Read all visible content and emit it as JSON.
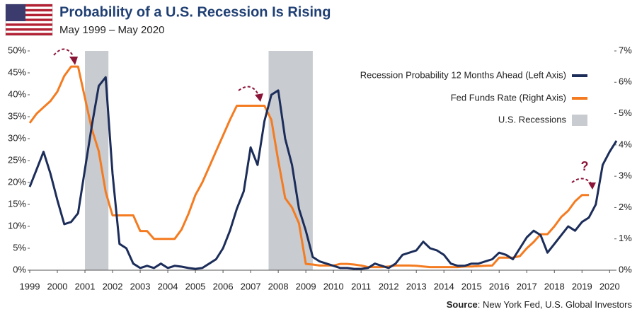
{
  "chart_data": {
    "type": "line",
    "title": "Probability of a U.S. Recession Is Rising",
    "subtitle": "May 1999 – May 2020",
    "source_label": "Source",
    "source_text": ": New York Fed, U.S. Global Investors",
    "annotation": "?",
    "recession_name": "U.S. Recessions",
    "recession_color": "#c8cbd0",
    "recessions": [
      [
        2001.0,
        2001.85
      ],
      [
        2007.65,
        2009.25
      ]
    ],
    "xlim": [
      1999,
      2020.3
    ],
    "xticks": [
      1999,
      2000,
      2001,
      2002,
      2003,
      2004,
      2005,
      2006,
      2007,
      2008,
      2009,
      2010,
      2011,
      2012,
      2013,
      2014,
      2015,
      2016,
      2017,
      2018,
      2019,
      2020
    ],
    "ylim": [
      0,
      50
    ],
    "yticks": [
      {
        "value": 0,
        "label": "0%"
      },
      {
        "value": 5,
        "label": "5%"
      },
      {
        "value": 10,
        "label": "10%"
      },
      {
        "value": 15,
        "label": "15%"
      },
      {
        "value": 20,
        "label": "20%"
      },
      {
        "value": 25,
        "label": "25%"
      },
      {
        "value": 30,
        "label": "30%"
      },
      {
        "value": 35,
        "label": "35%"
      },
      {
        "value": 40,
        "label": "40%"
      },
      {
        "value": 45,
        "label": "45%"
      },
      {
        "value": 50,
        "label": "50%"
      }
    ],
    "y2lim": [
      0,
      7
    ],
    "y2ticks": [
      {
        "value": 0,
        "label": "0%"
      },
      {
        "value": 1,
        "label": "1%"
      },
      {
        "value": 2,
        "label": "2%"
      },
      {
        "value": 3,
        "label": "3%"
      },
      {
        "value": 4,
        "label": "4%"
      },
      {
        "value": 5,
        "label": "5%"
      },
      {
        "value": 6,
        "label": "6%"
      },
      {
        "value": 7,
        "label": "7%"
      }
    ],
    "x": [
      1999.0,
      1999.25,
      1999.5,
      1999.75,
      2000.0,
      2000.25,
      2000.5,
      2000.75,
      2001.0,
      2001.25,
      2001.5,
      2001.75,
      2002.0,
      2002.25,
      2002.5,
      2002.75,
      2003.0,
      2003.25,
      2003.5,
      2003.75,
      2004.0,
      2004.25,
      2004.5,
      2004.75,
      2005.0,
      2005.25,
      2005.5,
      2005.75,
      2006.0,
      2006.25,
      2006.5,
      2006.75,
      2007.0,
      2007.25,
      2007.5,
      2007.75,
      2008.0,
      2008.25,
      2008.5,
      2008.75,
      2009.0,
      2009.25,
      2009.5,
      2009.75,
      2010.0,
      2010.25,
      2010.5,
      2010.75,
      2011.0,
      2011.25,
      2011.5,
      2011.75,
      2012.0,
      2012.25,
      2012.5,
      2012.75,
      2013.0,
      2013.25,
      2013.5,
      2013.75,
      2014.0,
      2014.25,
      2014.5,
      2014.75,
      2015.0,
      2015.25,
      2015.5,
      2015.75,
      2016.0,
      2016.25,
      2016.5,
      2016.75,
      2017.0,
      2017.25,
      2017.5,
      2017.75,
      2018.0,
      2018.25,
      2018.5,
      2018.75,
      2019.0,
      2019.25,
      2019.5,
      2019.75,
      2020.0,
      2020.25
    ],
    "series": [
      {
        "name": "Recession Probability 12 Months Ahead (Left Axis)",
        "color": "#1c2d5a",
        "values": [
          19,
          23,
          27,
          22,
          16,
          10.5,
          11,
          13,
          23,
          33,
          42,
          44,
          22,
          6,
          5,
          1.5,
          0.5,
          1,
          0.5,
          1.5,
          0.5,
          1,
          0.8,
          0.5,
          0.3,
          0.5,
          1.5,
          2.5,
          5,
          9,
          14,
          18,
          28,
          24,
          34,
          40,
          41,
          30,
          24,
          14,
          9,
          3,
          2,
          1.5,
          1,
          0.5,
          0.5,
          0.3,
          0.3,
          0.5,
          1.5,
          1,
          0.5,
          1.5,
          3.5,
          4,
          4.5,
          6.5,
          5,
          4.5,
          3.5,
          1.5,
          1,
          1,
          1.5,
          1.5,
          2,
          2.5,
          4,
          3.5,
          2.5,
          5,
          7.5,
          9,
          8,
          4,
          6,
          8,
          10,
          9,
          11,
          12,
          15,
          24,
          27,
          29.5
        ]
      },
      {
        "name": "Fed Funds Rate (Right Axis)",
        "color": "#f47b20",
        "axis": "y2",
        "values": [
          4.7,
          5.0,
          5.2,
          5.4,
          5.7,
          6.2,
          6.5,
          6.5,
          5.5,
          4.5,
          3.8,
          2.5,
          1.75,
          1.75,
          1.75,
          1.75,
          1.25,
          1.25,
          1.0,
          1.0,
          1.0,
          1.0,
          1.3,
          1.8,
          2.4,
          2.8,
          3.3,
          3.8,
          4.3,
          4.8,
          5.25,
          5.25,
          5.25,
          5.25,
          5.25,
          4.8,
          3.5,
          2.3,
          2.0,
          1.5,
          0.2,
          0.18,
          0.15,
          0.15,
          0.15,
          0.2,
          0.2,
          0.18,
          0.15,
          0.1,
          0.1,
          0.1,
          0.12,
          0.15,
          0.15,
          0.15,
          0.14,
          0.12,
          0.1,
          0.1,
          0.1,
          0.1,
          0.1,
          0.12,
          0.12,
          0.13,
          0.14,
          0.15,
          0.4,
          0.4,
          0.4,
          0.45,
          0.7,
          0.9,
          1.15,
          1.15,
          1.4,
          1.7,
          1.9,
          2.2,
          2.4,
          2.4,
          null,
          null,
          null,
          null
        ]
      }
    ]
  }
}
